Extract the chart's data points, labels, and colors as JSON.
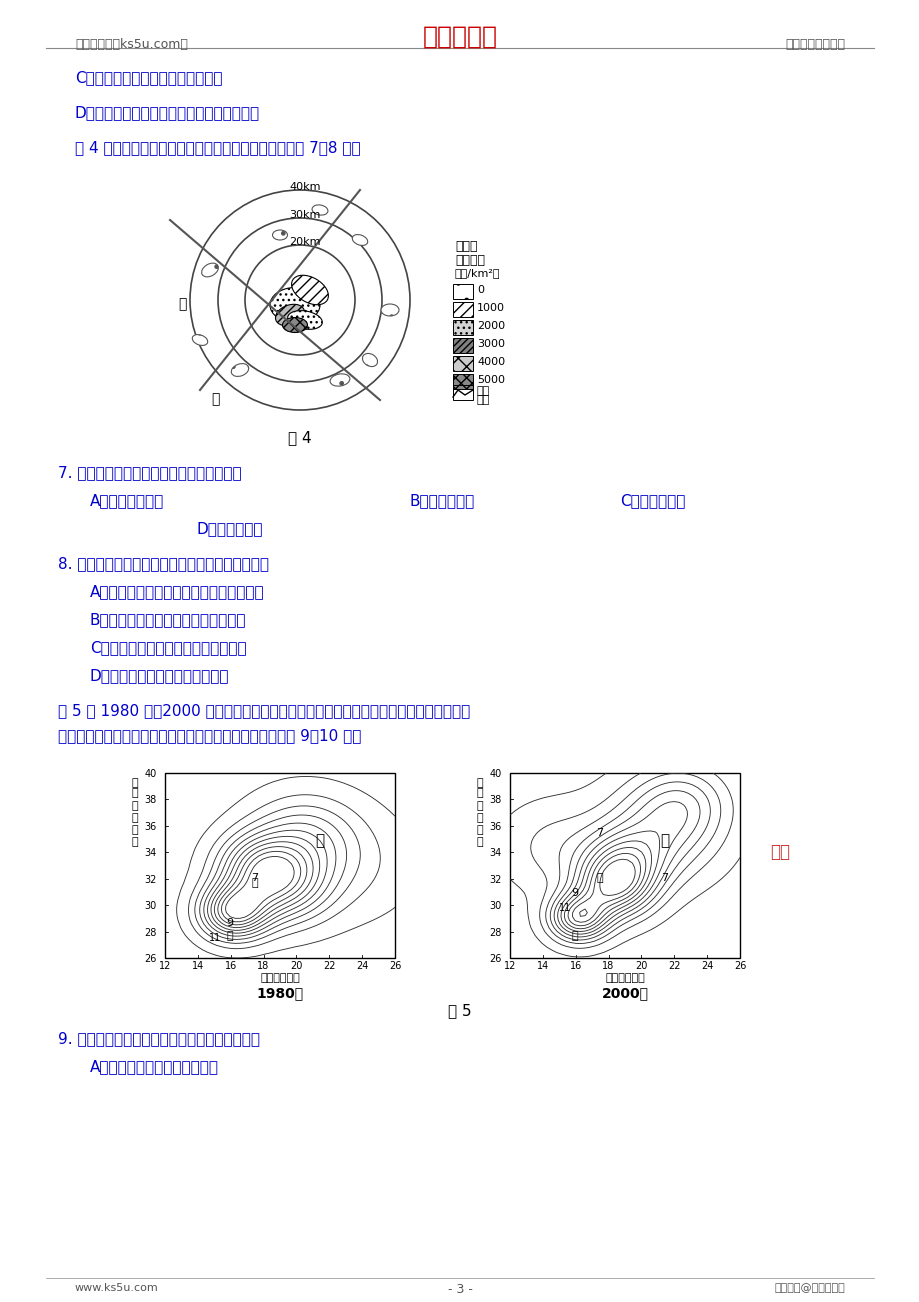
{
  "header_left": "高考资源网（ks5u.com）",
  "header_center": "高考资源网",
  "header_right": "您身边的高考专家",
  "footer_left": "www.ks5u.com",
  "footer_center": "- 3 -",
  "footer_right": "版权所有@高考资源网",
  "header_color": "#CC0000",
  "header_text_color": "#333333",
  "blue_color": "#0000CC",
  "dark_blue": "#000080",
  "line_c": "C．该地日影越来越长，昼开始变短",
  "line_d": "D．地中海沿岸的游人正在沙滩上进行日光浴",
  "fig4_caption": "图 4 是某城市制造业就业密度的空间分布图，读图完成 7～8 题。",
  "fig4_label": "图 4",
  "q7": "7. 从图示信息推断，甲处的制造业最可能是",
  "q7_a": "A．劳动力指向型",
  "q7_b": "B．技术指向型",
  "q7_c": "C．市场指向型",
  "q7_d": "D．动力指向型",
  "q8": "8. 乙处的制造业产生集聚现象，这样布局可能因为",
  "q8_a": "A．这些制造业大多存在生产协作上的联系",
  "q8_b": "B．乙处的交通通达度比市中心区域高",
  "q8_c": "C．可以大幅度降低对当地环境的压力",
  "q8_d": "D．产业的集聚可以减少工资支出",
  "fig5_desc1": "图 5 为 1980 年～2000 年我国某市人口密度等值线（图中数值为人口密度相对值，即该地",
  "fig5_desc2": "人口密度与城市平均人口密度比值）分布示意图。读图回答 9～10 题。",
  "fig5_label": "图 5",
  "fig5_left_title": "1980年",
  "fig5_right_title": "2000年",
  "q9": "9. 有关该市人口分布变化特点的说法，正确的是",
  "q9_a": "A．各区人口密度都在快速增加"
}
